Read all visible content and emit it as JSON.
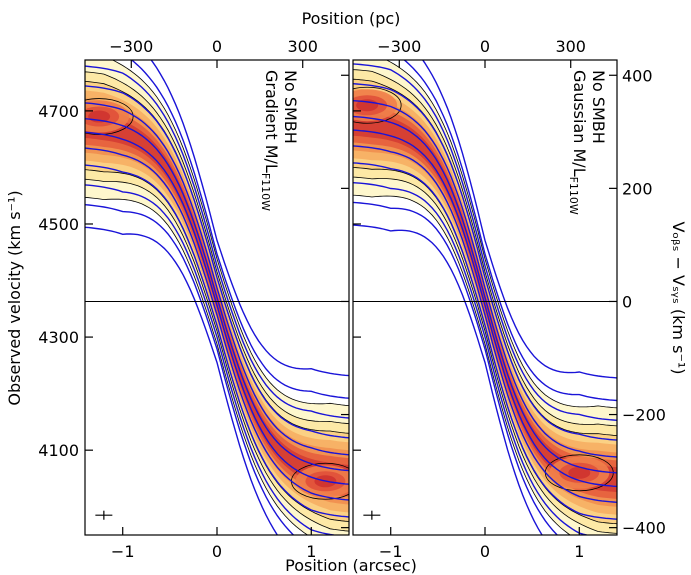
{
  "chart_data": {
    "type": "contour",
    "figure": {
      "top_axis_label": "Position (pc)",
      "x_axis_label": "Position (arcsec)",
      "left_axis_label": "Observed velocity (km s⁻¹)",
      "right_axis_label": "Vₒᵦₛ − Vₛᵧₛ (km s⁻¹)",
      "systemic_velocity": 4363
    },
    "axes": {
      "x_arcsec": {
        "range": [
          -1.4,
          1.4
        ],
        "ticks": [
          -1,
          0,
          1
        ],
        "tick_labels": [
          "−1",
          "0",
          "1"
        ]
      },
      "x_pc": {
        "ticks": [
          -300,
          0,
          300
        ],
        "tick_labels": [
          "−300",
          "0",
          "300"
        ],
        "pc_per_arcsec": 330
      },
      "y_obs": {
        "range": [
          3950,
          4790
        ],
        "ticks": [
          4100,
          4300,
          4500,
          4700
        ],
        "tick_labels": [
          "4100",
          "4300",
          "4500",
          "4700"
        ]
      },
      "y_rel": {
        "ticks": [
          -400,
          -200,
          0,
          200,
          400
        ],
        "tick_labels": [
          "−400",
          "−200",
          "0",
          "200",
          "400"
        ]
      }
    },
    "panels": [
      {
        "id": "left",
        "annotation_lines": [
          "No SMBH",
          "Gradient M/L",
          "F110W"
        ],
        "model_curve": {
          "amplitude": 315,
          "scale": 0.55
        },
        "data_peaks": [
          {
            "x": -1.25,
            "v": 4690
          },
          {
            "x": 1.15,
            "v": 4045
          }
        ]
      },
      {
        "id": "right",
        "annotation_lines": [
          "No SMBH",
          "Gaussian M/L",
          "F110W"
        ],
        "model_curve": {
          "amplitude": 318,
          "scale": 0.52
        },
        "data_peaks": [
          {
            "x": -1.25,
            "v": 4710
          },
          {
            "x": 1.0,
            "v": 4060
          }
        ]
      }
    ],
    "error_bar": {
      "x": -1.2,
      "v": 3985,
      "x_half_width": 0.09,
      "v_half_width": 8
    },
    "colors": {
      "model": "#1a14d8",
      "data_outline": "#000000",
      "data_low": "#fdf2b8",
      "data_mid": "#f6b36a",
      "data_high": "#d9403a"
    }
  }
}
